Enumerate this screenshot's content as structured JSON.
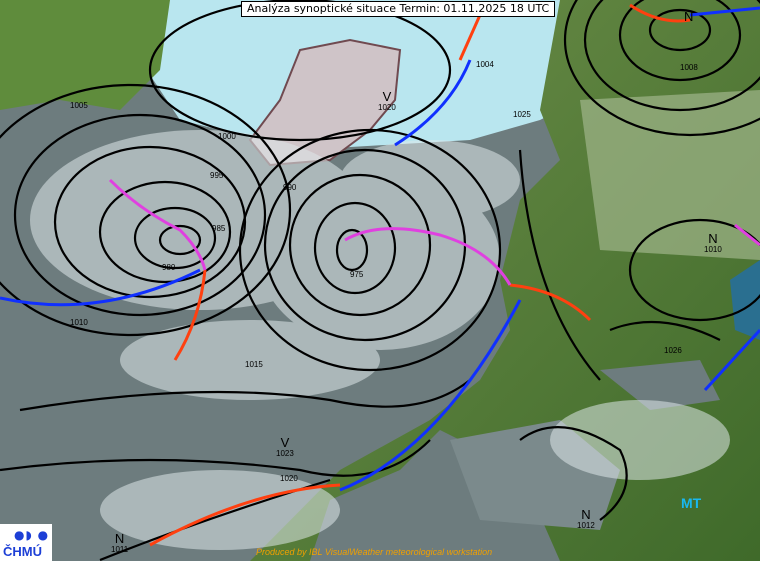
{
  "title": "Analýza synoptické situace Termin: 01.11.2025 18 UTC",
  "pressure_centers": [
    {
      "type": "V",
      "value": "1020"
    },
    {
      "type": "V",
      "value": "1023"
    },
    {
      "type": "N",
      "value": "1011"
    },
    {
      "type": "N",
      "value": "1010"
    },
    {
      "type": "N",
      "value": "1012"
    },
    {
      "type": "N",
      "value": ""
    }
  ],
  "airmass_label": "MT",
  "isobar_labels": [
    "1005",
    "1000",
    "995",
    "990",
    "985",
    "980",
    "975",
    "1010",
    "1015",
    "1020",
    "1025",
    "1026",
    "1008",
    "1004"
  ],
  "logo": {
    "symbol": "●◗ ●",
    "text": "ČHMÚ"
  },
  "credit": "Produced by IBL VisualWeather meteorological workstation",
  "colors": {
    "cold_front": "#1030ff",
    "warm_front": "#ff4010",
    "occluded_front": "#e040e0",
    "isobar": "#000000",
    "sea": "#6d7c7e",
    "land": "#4f8a2a",
    "mt_label": "#19b8f0",
    "credit": "#f0a000"
  }
}
